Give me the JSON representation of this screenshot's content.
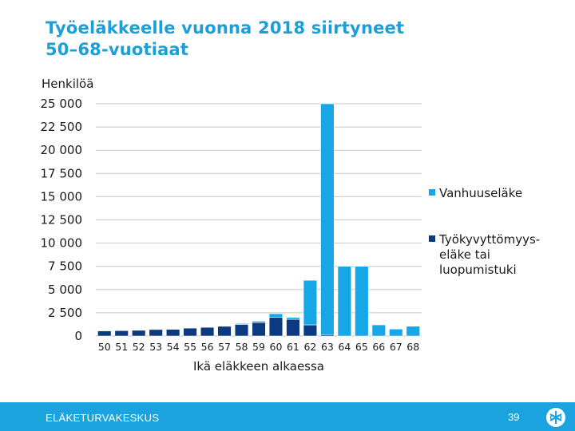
{
  "slide": {
    "title_line1": "Työeläkkeelle vuonna 2018 siirtyneet",
    "title_line2": "50–68-vuotiaat"
  },
  "footer": {
    "organization": "ELÄKETURVAKESKUS",
    "page_number": "39"
  },
  "colors": {
    "title": "#1c9fd8",
    "footer_bg": "#1aa3de",
    "vanhuuselake": "#17a6e6",
    "tyokyvyttomyyselake": "#0c3a80",
    "gridline": "#c8c8c8",
    "axis_text": "#1a1a1a"
  },
  "chart_data": {
    "type": "bar",
    "stacked": true,
    "title": "",
    "ylabel": "Henkilöä",
    "xlabel": "Ikä eläkkeen alkaessa",
    "ylim": [
      0,
      25000
    ],
    "yticks": [
      0,
      2500,
      5000,
      7500,
      10000,
      12500,
      15000,
      17500,
      20000,
      22500,
      25000
    ],
    "ytick_labels": [
      "0",
      "2 500",
      "5 000",
      "7 500",
      "10 000",
      "12 500",
      "15 000",
      "17 500",
      "20 000",
      "22 500",
      "25 000"
    ],
    "grid": true,
    "legend_position": "right",
    "categories": [
      "50",
      "51",
      "52",
      "53",
      "54",
      "55",
      "56",
      "57",
      "58",
      "59",
      "60",
      "61",
      "62",
      "63",
      "64",
      "65",
      "66",
      "67",
      "68"
    ],
    "series": [
      {
        "name": "Työkyvyttömyys-eläke tai luopumistuki",
        "legend_lines": [
          "Työkyvyttömyys-",
          "eläke tai",
          "luopumistuki"
        ],
        "values": [
          550,
          580,
          620,
          700,
          720,
          850,
          950,
          1050,
          1250,
          1450,
          2000,
          1800,
          1200,
          150,
          0,
          0,
          0,
          0,
          0
        ]
      },
      {
        "name": "Vanhuuseläke",
        "legend_lines": [
          "Vanhuuseläke"
        ],
        "values": [
          0,
          0,
          50,
          0,
          0,
          0,
          30,
          50,
          100,
          150,
          400,
          200,
          4800,
          24850,
          7500,
          7500,
          1200,
          750,
          1050
        ]
      }
    ]
  }
}
